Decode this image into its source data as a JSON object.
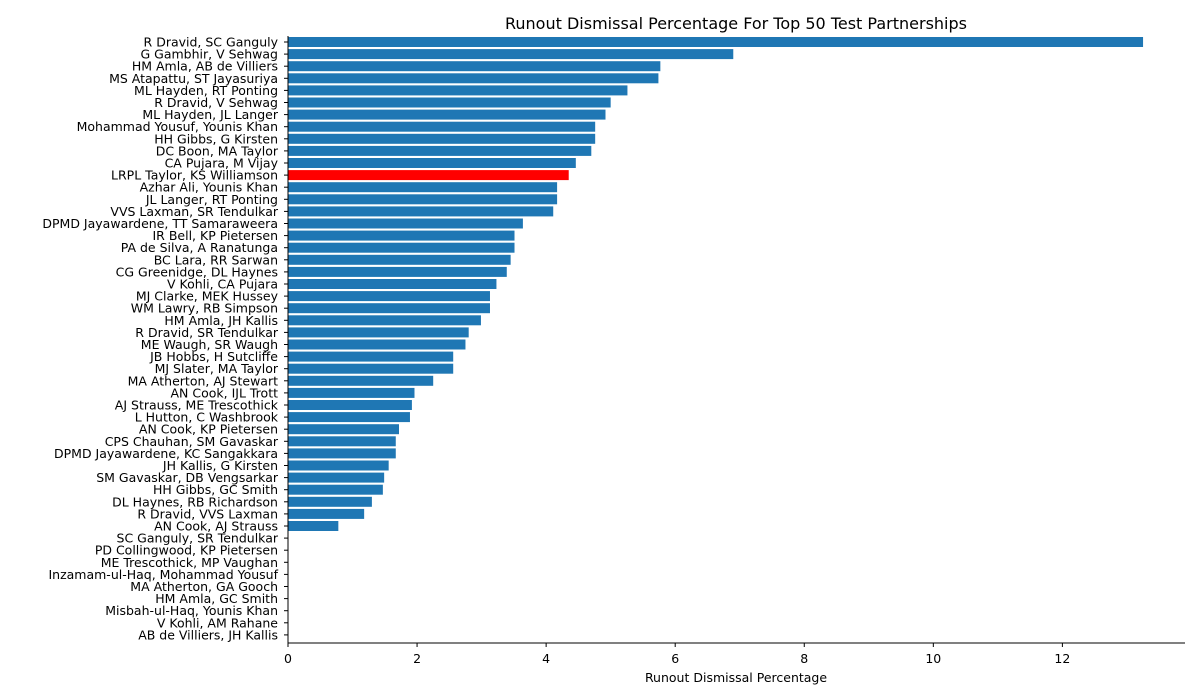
{
  "chart_data": {
    "type": "bar",
    "orientation": "horizontal",
    "title": "Runout Dismissal Percentage For Top 50 Test Partnerships",
    "xlabel": "Runout Dismissal Percentage",
    "ylabel": "",
    "xlim": [
      0,
      13.9
    ],
    "xticks": [
      0,
      2,
      4,
      6,
      8,
      10,
      12
    ],
    "grid": false,
    "default_color": "#1f77b4",
    "highlight_color": "#ff0000",
    "highlight_index": 11,
    "categories": [
      "R Dravid, SC Ganguly",
      "G Gambhir, V Sehwag",
      "HM Amla, AB de Villiers",
      "MS Atapattu, ST Jayasuriya",
      "ML Hayden, RT Ponting",
      "R Dravid, V Sehwag",
      "ML Hayden, JL Langer",
      "Mohammad Yousuf, Younis Khan",
      "HH Gibbs, G Kirsten",
      "DC Boon, MA Taylor",
      "CA Pujara, M Vijay",
      "LRPL Taylor, KS Williamson",
      "Azhar Ali, Younis Khan",
      "JL Langer, RT Ponting",
      "VVS Laxman, SR Tendulkar",
      "DPMD Jayawardene, TT Samaraweera",
      "IR Bell, KP Pietersen",
      "PA de Silva, A Ranatunga",
      "BC Lara, RR Sarwan",
      "CG Greenidge, DL Haynes",
      "V Kohli, CA Pujara",
      "MJ Clarke, MEK Hussey",
      "WM Lawry, RB Simpson",
      "HM Amla, JH Kallis",
      "R Dravid, SR Tendulkar",
      "ME Waugh, SR Waugh",
      "JB Hobbs, H Sutcliffe",
      "MJ Slater, MA Taylor",
      "MA Atherton, AJ Stewart",
      "AN Cook, IJL Trott",
      "AJ Strauss, ME Trescothick",
      "L Hutton, C Washbrook",
      "AN Cook, KP Pietersen",
      "CPS Chauhan, SM Gavaskar",
      "DPMD Jayawardene, KC Sangakkara",
      "JH Kallis, G Kirsten",
      "SM Gavaskar, DB Vengsarkar",
      "HH Gibbs, GC Smith",
      "DL Haynes, RB Richardson",
      "R Dravid, VVS Laxman",
      "AN Cook, AJ Strauss",
      "SC Ganguly, SR Tendulkar",
      "PD Collingwood, KP Pietersen",
      "ME Trescothick, MP Vaughan",
      "Inzamam-ul-Haq, Mohammad Yousuf",
      "MA Atherton, GA Gooch",
      "HM Amla, GC Smith",
      "Misbah-ul-Haq, Younis Khan",
      "V Kohli, AM Rahane",
      "AB de Villiers, JH Kallis"
    ],
    "values": [
      13.25,
      6.9,
      5.77,
      5.74,
      5.26,
      5.0,
      4.92,
      4.76,
      4.76,
      4.7,
      4.46,
      4.35,
      4.17,
      4.17,
      4.11,
      3.64,
      3.51,
      3.51,
      3.45,
      3.39,
      3.23,
      3.13,
      3.13,
      2.99,
      2.8,
      2.75,
      2.56,
      2.56,
      2.25,
      1.96,
      1.92,
      1.89,
      1.72,
      1.67,
      1.67,
      1.56,
      1.49,
      1.47,
      1.3,
      1.18,
      0.78,
      0,
      0,
      0,
      0,
      0,
      0,
      0,
      0,
      0
    ]
  }
}
